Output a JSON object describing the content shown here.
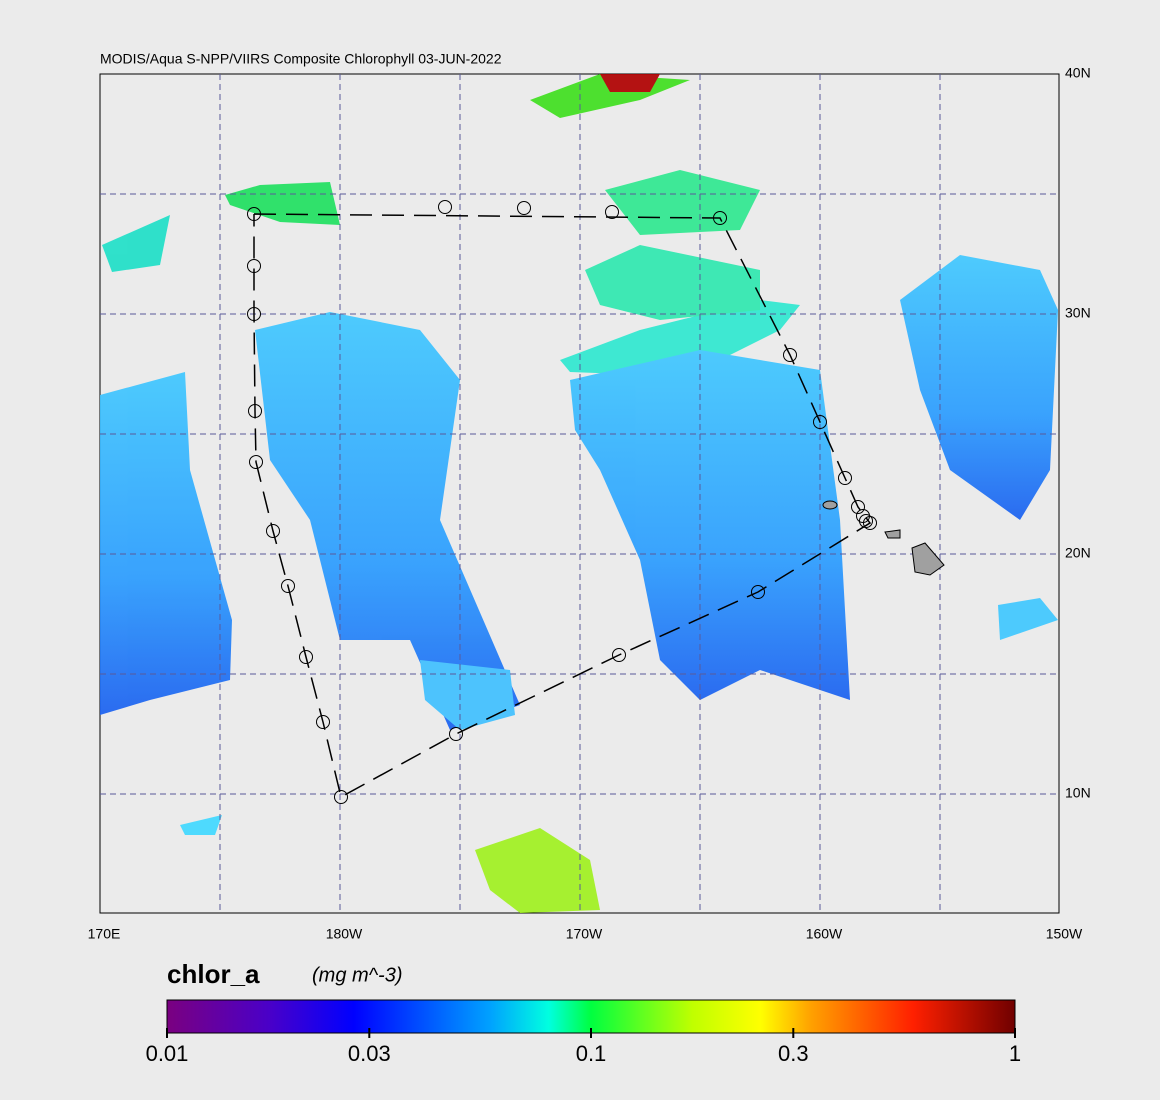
{
  "title": "MODIS/Aqua S-NPP/VIIRS Composite Chlorophyll 03-JUN-2022",
  "lon_labels": [
    "170E",
    "180W",
    "170W",
    "160W",
    "150W"
  ],
  "lat_labels": [
    "40N",
    "30N",
    "20N",
    "10N"
  ],
  "colorbar": {
    "label": "chlor_a",
    "units": "(mg m^-3)",
    "range": [
      0.01,
      1
    ],
    "log": true,
    "ticks": [
      0.01,
      0.03,
      0.1,
      0.3,
      1
    ]
  }
}
